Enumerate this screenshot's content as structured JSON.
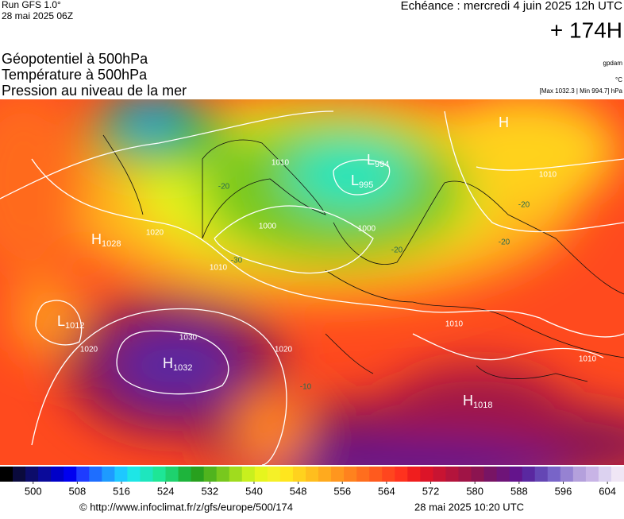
{
  "header": {
    "run": "Run GFS 1.0°",
    "run_date": "28 mai 2025 06Z",
    "valid": "Echéance : mercredi 4 juin 2025 12h UTC",
    "lead": "+ 174H",
    "titles": [
      "Géopotentiel à 500hPa",
      "Température à 500hPa",
      "Pression au niveau de la mer"
    ],
    "units": [
      "gpdam",
      "°C",
      "[Max 1032.3 | Min 994.7] hPa"
    ]
  },
  "map": {
    "centers": [
      {
        "letter": "H",
        "pressure": "1028"
      },
      {
        "letter": "L",
        "pressure": "1012"
      },
      {
        "letter": "H",
        "pressure": "1032"
      },
      {
        "letter": "L",
        "pressure": "994"
      },
      {
        "letter": "L",
        "pressure": "995"
      },
      {
        "letter": "H",
        "pressure": "1018"
      },
      {
        "letter": "H"
      }
    ],
    "isobar_labels": [
      "1010",
      "1000",
      "1000",
      "1010",
      "1020",
      "1020",
      "1030",
      "1020",
      "1010",
      "1010",
      "1010"
    ],
    "temperature_labels": [
      "-20",
      "-20",
      "-20",
      "-20",
      "-30",
      "-10"
    ]
  },
  "colorbar": {
    "lim": [
      494,
      607
    ],
    "ticks": [
      500,
      508,
      516,
      524,
      532,
      540,
      548,
      556,
      564,
      572,
      580,
      588,
      596,
      604
    ],
    "colors": [
      "#000000",
      "#0a0a3c",
      "#0c0c6a",
      "#0a0a9a",
      "#0000c8",
      "#0000f0",
      "#1e3cff",
      "#1e6eff",
      "#1e9bff",
      "#1ec8ff",
      "#1ee6e6",
      "#1ee6be",
      "#1ee696",
      "#1ed26e",
      "#1eb43c",
      "#28a01e",
      "#50b41e",
      "#78c81e",
      "#a0dc1e",
      "#c8f01e",
      "#e6f51e",
      "#f5f028",
      "#ffe61e",
      "#ffd21e",
      "#ffbe1e",
      "#ffaa1e",
      "#ff961e",
      "#ff821e",
      "#ff6e1e",
      "#ff5a1e",
      "#ff461e",
      "#ff321e",
      "#f01e1e",
      "#dc1428",
      "#c81432",
      "#b4143c",
      "#a01446",
      "#8c1450",
      "#781464",
      "#6e1478",
      "#64148c",
      "#5a28a0",
      "#6446b4",
      "#7864c8",
      "#9682d2",
      "#b4a0dc",
      "#c8b4e6",
      "#dcd2f0",
      "#f0e6f5"
    ]
  },
  "footer": {
    "url": "© http://www.infoclimat.fr/z/gfs/europe/500/174",
    "date": "28 mai 2025 10:20 UTC"
  }
}
